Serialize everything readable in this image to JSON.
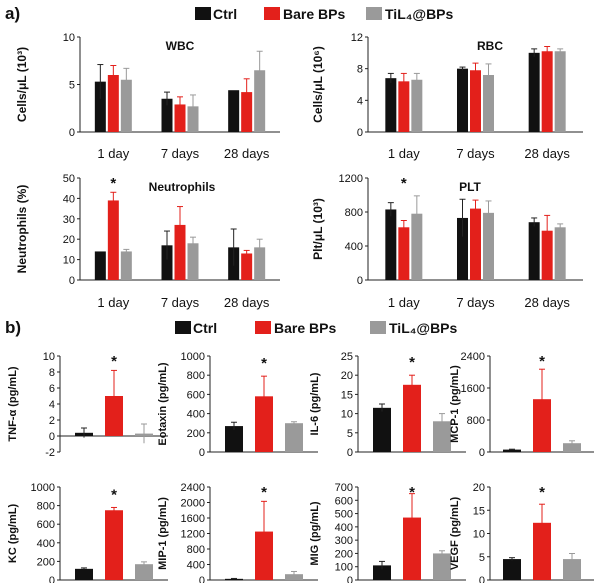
{
  "colors": {
    "ctrl": "#111111",
    "bare": "#e3201b",
    "til": "#9a9a9a"
  },
  "panel_labels": [
    "a)",
    "b)"
  ],
  "chart_data": [
    {
      "type": "bar",
      "panel": "a",
      "title": "WBC",
      "ylabel": "Cells/μL (10³)",
      "categories": [
        "1 day",
        "7 days",
        "28 days"
      ],
      "ylim": [
        0,
        10
      ],
      "yticks": [
        "0",
        "5",
        "10"
      ],
      "series": [
        {
          "name": "Ctrl",
          "values": [
            5.3,
            3.5,
            4.4
          ],
          "errors": [
            1.8,
            0.7,
            0.0
          ]
        },
        {
          "name": "Bare BPs",
          "values": [
            6.0,
            2.9,
            4.2
          ],
          "errors": [
            1.0,
            0.8,
            1.4
          ]
        },
        {
          "name": "TiL₄@BPs",
          "values": [
            5.5,
            2.7,
            6.5
          ],
          "errors": [
            1.2,
            1.2,
            2.0
          ]
        }
      ],
      "annotations": []
    },
    {
      "type": "bar",
      "panel": "a",
      "title": "RBC",
      "ylabel": "Cells/μL (10⁶)",
      "categories": [
        "1 day",
        "7 days",
        "28 days"
      ],
      "ylim": [
        0,
        12
      ],
      "yticks": [
        "0",
        "4",
        "8",
        "12"
      ],
      "series": [
        {
          "name": "Ctrl",
          "values": [
            6.8,
            8.0,
            10.0
          ],
          "errors": [
            0.6,
            0.2,
            0.5
          ]
        },
        {
          "name": "Bare BPs",
          "values": [
            6.4,
            7.8,
            10.2
          ],
          "errors": [
            1.0,
            0.9,
            0.6
          ]
        },
        {
          "name": "TiL₄@BPs",
          "values": [
            6.6,
            7.2,
            10.2
          ],
          "errors": [
            0.8,
            1.4,
            0.3
          ]
        }
      ],
      "annotations": []
    },
    {
      "type": "bar",
      "panel": "a",
      "title": "Neutrophils",
      "ylabel": "Neutrophils (%)",
      "categories": [
        "1 day",
        "7 days",
        "28 days"
      ],
      "ylim": [
        0,
        50
      ],
      "yticks": [
        "0",
        "10",
        "20",
        "30",
        "40",
        "50"
      ],
      "series": [
        {
          "name": "Ctrl",
          "values": [
            14,
            17,
            16
          ],
          "errors": [
            0,
            7,
            9
          ]
        },
        {
          "name": "Bare BPs",
          "values": [
            39,
            27,
            13
          ],
          "errors": [
            4,
            9,
            1.5
          ]
        },
        {
          "name": "TiL₄@BPs",
          "values": [
            14,
            18,
            16
          ],
          "errors": [
            1,
            3,
            4
          ]
        }
      ],
      "annotations": [
        {
          "text": "*",
          "category": 0
        }
      ]
    },
    {
      "type": "bar",
      "panel": "a",
      "title": "PLT",
      "ylabel": "Plt/μL (10³)",
      "categories": [
        "1 day",
        "7 days",
        "28 days"
      ],
      "ylim": [
        0,
        1200
      ],
      "yticks": [
        "0",
        "400",
        "800",
        "1200"
      ],
      "series": [
        {
          "name": "Ctrl",
          "values": [
            830,
            730,
            680
          ],
          "errors": [
            80,
            220,
            50
          ]
        },
        {
          "name": "Bare BPs",
          "values": [
            620,
            840,
            580
          ],
          "errors": [
            80,
            100,
            180
          ]
        },
        {
          "name": "TiL₄@BPs",
          "values": [
            780,
            790,
            620
          ],
          "errors": [
            210,
            140,
            40
          ]
        }
      ],
      "annotations": [
        {
          "text": "*",
          "category": 0
        }
      ]
    },
    {
      "type": "bar",
      "panel": "b",
      "ylabel": "TNF-α (pg/mL)",
      "categories": [
        "Ctrl",
        "Bare BPs",
        "TiL₄@BPs"
      ],
      "ylim": [
        -2,
        10
      ],
      "yticks": [
        "-2",
        "0",
        "2",
        "4",
        "6",
        "8",
        "10"
      ],
      "values": [
        0.4,
        5.0,
        0.3
      ],
      "errors": [
        0.6,
        3.2,
        1.2
      ],
      "annotations": [
        {
          "text": "*",
          "category": 1
        }
      ]
    },
    {
      "type": "bar",
      "panel": "b",
      "ylabel": "Eotaxin (pg/mL)",
      "categories": [
        "Ctrl",
        "Bare BPs",
        "TiL₄@BPs"
      ],
      "ylim": [
        0,
        1000
      ],
      "yticks": [
        "0",
        "200",
        "400",
        "600",
        "800",
        "1000"
      ],
      "values": [
        270,
        580,
        300
      ],
      "errors": [
        40,
        210,
        15
      ],
      "annotations": [
        {
          "text": "*",
          "category": 1
        }
      ]
    },
    {
      "type": "bar",
      "panel": "b",
      "ylabel": "IL-6 (pg/mL)",
      "categories": [
        "Ctrl",
        "Bare BPs",
        "TiL₄@BPs"
      ],
      "ylim": [
        0,
        25
      ],
      "yticks": [
        "0",
        "5",
        "10",
        "15",
        "20",
        "25"
      ],
      "values": [
        11.5,
        17.5,
        8.0
      ],
      "errors": [
        1.0,
        2.5,
        2.0
      ],
      "annotations": [
        {
          "text": "*",
          "category": 1
        }
      ]
    },
    {
      "type": "bar",
      "panel": "b",
      "ylabel": "MCP-1 (pg/mL)",
      "categories": [
        "Ctrl",
        "Bare BPs",
        "TiL₄@BPs"
      ],
      "ylim": [
        0,
        2400
      ],
      "yticks": [
        "0",
        "800",
        "1600",
        "2400"
      ],
      "values": [
        60,
        1320,
        220
      ],
      "errors": [
        10,
        750,
        60
      ],
      "annotations": [
        {
          "text": "*",
          "category": 1
        }
      ]
    },
    {
      "type": "bar",
      "panel": "b",
      "ylabel": "KC (pg/mL)",
      "categories": [
        "Ctrl",
        "Bare BPs",
        "TiL₄@BPs"
      ],
      "ylim": [
        0,
        1000
      ],
      "yticks": [
        "0",
        "200",
        "400",
        "600",
        "800",
        "1000"
      ],
      "values": [
        120,
        750,
        170
      ],
      "errors": [
        10,
        30,
        25
      ],
      "annotations": [
        {
          "text": "*",
          "category": 1
        }
      ]
    },
    {
      "type": "bar",
      "panel": "b",
      "ylabel": "MIP-1 (pg/mL)",
      "categories": [
        "Ctrl",
        "Bare BPs",
        "TiL₄@BPs"
      ],
      "ylim": [
        0,
        2400
      ],
      "yticks": [
        "0",
        "400",
        "800",
        "1200",
        "1600",
        "2000",
        "2400"
      ],
      "values": [
        30,
        1250,
        150
      ],
      "errors": [
        10,
        780,
        70
      ],
      "annotations": [
        {
          "text": "*",
          "category": 1
        }
      ]
    },
    {
      "type": "bar",
      "panel": "b",
      "ylabel": "MIG (pg/mL)",
      "categories": [
        "Ctrl",
        "Bare BPs",
        "TiL₄@BPs"
      ],
      "ylim": [
        0,
        700
      ],
      "yticks": [
        "0",
        "100",
        "200",
        "300",
        "400",
        "500",
        "600",
        "700"
      ],
      "values": [
        110,
        470,
        200
      ],
      "errors": [
        30,
        180,
        20
      ],
      "annotations": [
        {
          "text": "*",
          "category": 1
        }
      ]
    },
    {
      "type": "bar",
      "panel": "b",
      "ylabel": "VEGF (pg/mL)",
      "categories": [
        "Ctrl",
        "Bare BPs",
        "TiL₄@BPs"
      ],
      "ylim": [
        0,
        20
      ],
      "yticks": [
        "0",
        "5",
        "10",
        "15",
        "20"
      ],
      "values": [
        4.5,
        12.3,
        4.5
      ],
      "errors": [
        0.3,
        4.0,
        1.2
      ],
      "annotations": [
        {
          "text": "*",
          "category": 1
        }
      ]
    }
  ]
}
